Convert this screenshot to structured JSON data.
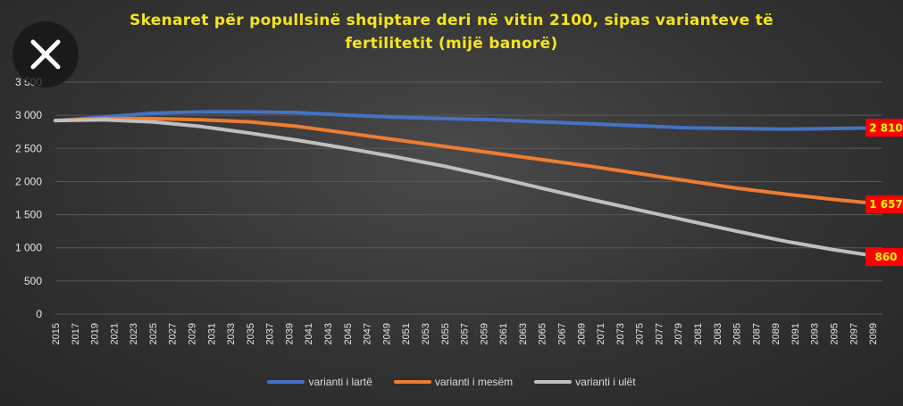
{
  "title_line1": "Skenaret për popullsinë shqiptare deri në vitin 2100, sipas varianteve të",
  "title_line2": "fertilitetit (mijë banorë)",
  "colors": {
    "high": "#4472c4",
    "medium": "#ed7d31",
    "low": "#bfbfbf",
    "label_bg": "#ff0000",
    "label_text": "#ffff00",
    "title": "#f5e51a"
  },
  "icons": {
    "close": "close-icon"
  },
  "chart_data": {
    "type": "line",
    "xlabel": "",
    "ylabel": "",
    "ylim": [
      0,
      3500
    ],
    "xlim": [
      2015,
      2100
    ],
    "y_ticks": [
      0,
      500,
      1000,
      1500,
      2000,
      2500,
      3000,
      3500
    ],
    "y_tick_labels": [
      "0",
      "500",
      "1 000",
      "1 500",
      "2 000",
      "2 500",
      "3 000",
      "3 500"
    ],
    "x_tick_labels": [
      "2015",
      "2017",
      "2019",
      "2021",
      "2023",
      "2025",
      "2027",
      "2029",
      "2031",
      "2033",
      "2035",
      "2037",
      "2039",
      "2041",
      "2043",
      "2045",
      "2047",
      "2049",
      "2051",
      "2053",
      "2055",
      "2057",
      "2059",
      "2061",
      "2063",
      "2065",
      "2067",
      "2069",
      "2071",
      "2073",
      "2075",
      "2077",
      "2079",
      "2081",
      "2083",
      "2085",
      "2087",
      "2089",
      "2091",
      "2093",
      "2095",
      "2097",
      "2099"
    ],
    "grid": true,
    "legend_position": "bottom",
    "series": [
      {
        "name": "varianti i lartë",
        "color": "#4472c4",
        "x": [
          2015,
          2020,
          2025,
          2030,
          2035,
          2040,
          2045,
          2050,
          2055,
          2060,
          2065,
          2070,
          2075,
          2080,
          2085,
          2090,
          2095,
          2100
        ],
        "y": [
          2920,
          2975,
          3030,
          3050,
          3050,
          3040,
          3000,
          2970,
          2950,
          2930,
          2900,
          2870,
          2840,
          2810,
          2800,
          2790,
          2800,
          2810
        ],
        "end_label": "2 810"
      },
      {
        "name": "varianti i mesëm",
        "color": "#ed7d31",
        "x": [
          2015,
          2020,
          2025,
          2030,
          2035,
          2040,
          2045,
          2050,
          2055,
          2060,
          2065,
          2070,
          2075,
          2080,
          2085,
          2090,
          2095,
          2100
        ],
        "y": [
          2920,
          2950,
          2950,
          2930,
          2900,
          2830,
          2730,
          2630,
          2530,
          2430,
          2330,
          2230,
          2120,
          2010,
          1900,
          1810,
          1730,
          1657
        ],
        "end_label": "1 657"
      },
      {
        "name": "varianti i ulët",
        "color": "#bfbfbf",
        "x": [
          2015,
          2020,
          2025,
          2030,
          2035,
          2040,
          2045,
          2050,
          2055,
          2060,
          2065,
          2070,
          2075,
          2080,
          2085,
          2090,
          2095,
          2100
        ],
        "y": [
          2920,
          2930,
          2900,
          2830,
          2730,
          2620,
          2500,
          2370,
          2230,
          2070,
          1900,
          1730,
          1570,
          1410,
          1250,
          1100,
          970,
          860
        ],
        "end_label": "860"
      }
    ]
  }
}
